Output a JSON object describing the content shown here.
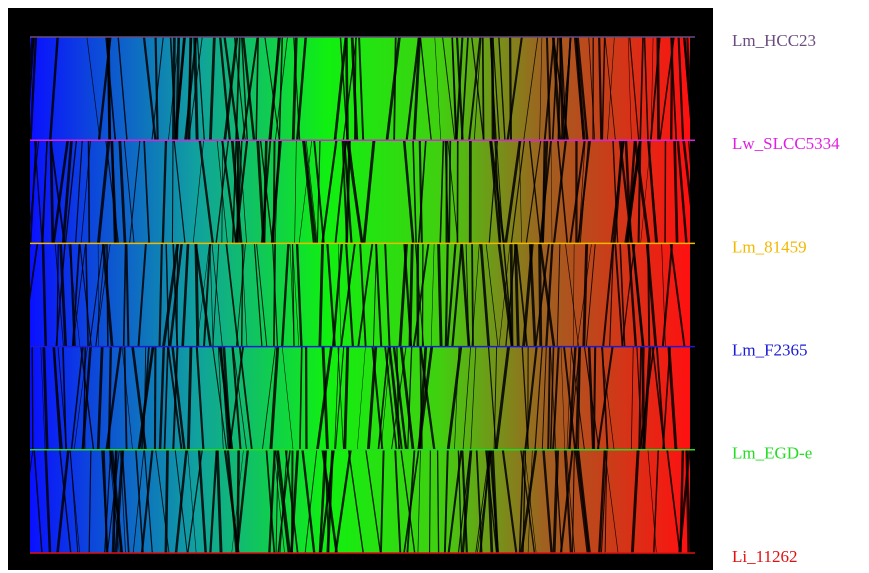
{
  "genomes": [
    {
      "label": "Lm_HCC23",
      "color": "#6b4c7e"
    },
    {
      "label": "Lw_SLCC5334",
      "color": "#e020e0"
    },
    {
      "label": "Lm_81459",
      "color": "#f2b800"
    },
    {
      "label": "Lm_F2365",
      "color": "#1a1ad8"
    },
    {
      "label": "Lm_EGD-e",
      "color": "#22dd22"
    },
    {
      "label": "Li_11262",
      "color": "#e01010"
    }
  ]
}
